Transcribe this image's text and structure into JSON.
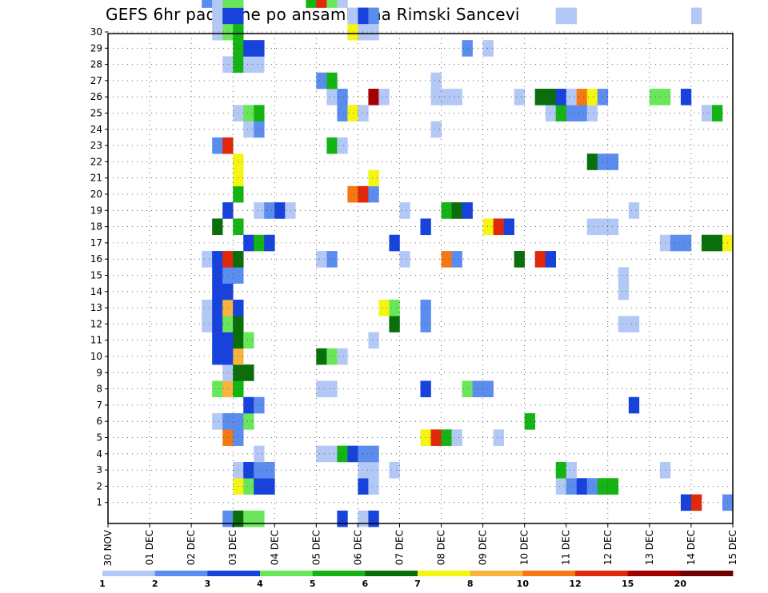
{
  "title": "GEFS 6hr padavine po ansamblima Rimski Sancevi",
  "chart_data": {
    "type": "heatmap",
    "title": "GEFS 6hr padavine po ansamblima Rimski Sancevi",
    "x_ticks": [
      "30 NOV",
      "01 DEC",
      "02 DEC",
      "03 DEC",
      "04 DEC",
      "05 DEC",
      "06 DEC",
      "07 DEC",
      "08 DEC",
      "09 DEC",
      "10 DEC",
      "11 DEC",
      "12 DEC",
      "13 DEC",
      "14 DEC",
      "15 DEC"
    ],
    "x_range_days": [
      0,
      15
    ],
    "y_ticks": [
      "1",
      "2",
      "3",
      "4",
      "5",
      "6",
      "7",
      "8",
      "9",
      "10",
      "11",
      "12",
      "13",
      "14",
      "15",
      "16",
      "17",
      "18",
      "19",
      "20",
      "21",
      "22",
      "23",
      "24",
      "25",
      "26",
      "27",
      "28",
      "29",
      "30"
    ],
    "y_range": [
      0,
      30
    ],
    "grid": true,
    "colorbar": {
      "labels": [
        "1",
        "2",
        "3",
        "4",
        "5",
        "6",
        "7",
        "8",
        "10",
        "12",
        "15",
        "20"
      ],
      "colors": [
        "#b4c8f5",
        "#5b8def",
        "#1842dc",
        "#6ae65a",
        "#14b414",
        "#0a6e0a",
        "#f5f514",
        "#f8b43c",
        "#f57814",
        "#e1280a",
        "#a50000",
        "#6e0000"
      ]
    },
    "note": "cells: [member, day_offset_from_30_NOV, 6h_steps, color_level 0-11]",
    "cells": [
      [
        0,
        2.75,
        1,
        1
      ],
      [
        0,
        3.0,
        1,
        5
      ],
      [
        0,
        3.25,
        2,
        3
      ],
      [
        0,
        5.5,
        1,
        2
      ],
      [
        0,
        6.0,
        1,
        0
      ],
      [
        0,
        6.25,
        1,
        2
      ],
      [
        1,
        13.75,
        1,
        2
      ],
      [
        1,
        14.0,
        1,
        9
      ],
      [
        1,
        14.75,
        1,
        1
      ],
      [
        2,
        3.0,
        1,
        6
      ],
      [
        2,
        3.25,
        1,
        3
      ],
      [
        2,
        3.5,
        2,
        2
      ],
      [
        2,
        6.0,
        1,
        2
      ],
      [
        2,
        6.25,
        1,
        0
      ],
      [
        2,
        10.75,
        1,
        0
      ],
      [
        2,
        11.0,
        1,
        1
      ],
      [
        2,
        11.25,
        1,
        2
      ],
      [
        2,
        11.5,
        1,
        1
      ],
      [
        2,
        11.75,
        1,
        4
      ],
      [
        2,
        12.0,
        1,
        4
      ],
      [
        3,
        3.0,
        1,
        0
      ],
      [
        3,
        3.25,
        1,
        2
      ],
      [
        3,
        3.5,
        2,
        1
      ],
      [
        3,
        6.0,
        2,
        0
      ],
      [
        3,
        6.75,
        1,
        0
      ],
      [
        3,
        10.75,
        1,
        4
      ],
      [
        3,
        11.0,
        1,
        0
      ],
      [
        3,
        13.25,
        1,
        0
      ],
      [
        4,
        3.5,
        1,
        0
      ],
      [
        4,
        5.0,
        2,
        0
      ],
      [
        4,
        5.5,
        1,
        4
      ],
      [
        4,
        5.75,
        1,
        2
      ],
      [
        4,
        6.0,
        2,
        1
      ],
      [
        5,
        2.75,
        1,
        8
      ],
      [
        5,
        3.0,
        1,
        1
      ],
      [
        5,
        7.5,
        1,
        6
      ],
      [
        5,
        7.75,
        1,
        9
      ],
      [
        5,
        8.0,
        1,
        4
      ],
      [
        5,
        8.25,
        1,
        0
      ],
      [
        5,
        9.25,
        1,
        0
      ],
      [
        6,
        2.5,
        1,
        0
      ],
      [
        6,
        2.75,
        2,
        1
      ],
      [
        6,
        3.25,
        1,
        3
      ],
      [
        6,
        10.0,
        1,
        4
      ],
      [
        7,
        3.25,
        1,
        2
      ],
      [
        7,
        3.5,
        1,
        1
      ],
      [
        7,
        12.5,
        1,
        2
      ],
      [
        8,
        2.5,
        1,
        3
      ],
      [
        8,
        2.75,
        1,
        7
      ],
      [
        8,
        3.0,
        1,
        4
      ],
      [
        8,
        5.0,
        2,
        0
      ],
      [
        8,
        7.5,
        1,
        2
      ],
      [
        8,
        8.5,
        1,
        3
      ],
      [
        8,
        8.75,
        2,
        1
      ],
      [
        9,
        2.75,
        1,
        0
      ],
      [
        9,
        3.0,
        1,
        5
      ],
      [
        9,
        3.25,
        1,
        5
      ],
      [
        10,
        2.5,
        1,
        2
      ],
      [
        10,
        2.75,
        1,
        2
      ],
      [
        10,
        3.0,
        1,
        7
      ],
      [
        10,
        5.0,
        1,
        5
      ],
      [
        10,
        5.25,
        1,
        3
      ],
      [
        10,
        5.5,
        1,
        0
      ],
      [
        11,
        2.5,
        1,
        2
      ],
      [
        11,
        2.75,
        1,
        2
      ],
      [
        11,
        3.0,
        1,
        5
      ],
      [
        11,
        3.25,
        1,
        3
      ],
      [
        11,
        6.25,
        1,
        0
      ],
      [
        12,
        2.25,
        1,
        0
      ],
      [
        12,
        2.5,
        1,
        2
      ],
      [
        12,
        2.75,
        1,
        3
      ],
      [
        12,
        3.0,
        1,
        5
      ],
      [
        12,
        6.75,
        1,
        5
      ],
      [
        12,
        7.5,
        1,
        1
      ],
      [
        12,
        12.25,
        2,
        0
      ],
      [
        13,
        2.25,
        1,
        0
      ],
      [
        13,
        2.5,
        1,
        2
      ],
      [
        13,
        2.75,
        1,
        7
      ],
      [
        13,
        3.0,
        1,
        2
      ],
      [
        13,
        6.5,
        1,
        6
      ],
      [
        13,
        6.75,
        1,
        3
      ],
      [
        13,
        7.5,
        1,
        1
      ],
      [
        14,
        2.5,
        2,
        2
      ],
      [
        14,
        12.25,
        1,
        0
      ],
      [
        15,
        2.5,
        1,
        2
      ],
      [
        15,
        2.75,
        2,
        1
      ],
      [
        15,
        12.25,
        1,
        0
      ],
      [
        16,
        2.25,
        1,
        0
      ],
      [
        16,
        2.5,
        1,
        2
      ],
      [
        16,
        2.75,
        1,
        9
      ],
      [
        16,
        3.0,
        1,
        5
      ],
      [
        16,
        5.0,
        1,
        0
      ],
      [
        16,
        5.25,
        1,
        1
      ],
      [
        16,
        7.0,
        1,
        0
      ],
      [
        16,
        8.0,
        1,
        8
      ],
      [
        16,
        8.25,
        1,
        1
      ],
      [
        16,
        9.75,
        1,
        5
      ],
      [
        16,
        10.25,
        1,
        9
      ],
      [
        16,
        10.5,
        1,
        2
      ],
      [
        17,
        3.25,
        1,
        2
      ],
      [
        17,
        3.5,
        1,
        4
      ],
      [
        17,
        3.75,
        1,
        2
      ],
      [
        17,
        6.75,
        1,
        2
      ],
      [
        17,
        13.25,
        1,
        0
      ],
      [
        17,
        13.5,
        2,
        1
      ],
      [
        17,
        14.25,
        2,
        5
      ],
      [
        17,
        14.75,
        1,
        6
      ],
      [
        18,
        2.5,
        1,
        5
      ],
      [
        18,
        3.0,
        1,
        4
      ],
      [
        18,
        7.5,
        1,
        2
      ],
      [
        18,
        9.0,
        1,
        6
      ],
      [
        18,
        9.25,
        1,
        9
      ],
      [
        18,
        9.5,
        1,
        2
      ],
      [
        18,
        11.5,
        2,
        0
      ],
      [
        18,
        12.0,
        1,
        0
      ],
      [
        19,
        2.75,
        1,
        2
      ],
      [
        19,
        3.5,
        1,
        0
      ],
      [
        19,
        3.75,
        1,
        1
      ],
      [
        19,
        4.0,
        1,
        2
      ],
      [
        19,
        4.25,
        1,
        0
      ],
      [
        19,
        7.0,
        1,
        0
      ],
      [
        19,
        8.0,
        1,
        4
      ],
      [
        19,
        8.25,
        1,
        5
      ],
      [
        19,
        8.5,
        1,
        2
      ],
      [
        19,
        12.5,
        1,
        0
      ],
      [
        20,
        3.0,
        1,
        4
      ],
      [
        20,
        5.75,
        1,
        8
      ],
      [
        20,
        6.0,
        1,
        9
      ],
      [
        20,
        6.25,
        1,
        1
      ],
      [
        21,
        3.0,
        1,
        6
      ],
      [
        21,
        6.25,
        1,
        6
      ],
      [
        22,
        3.0,
        1,
        6
      ],
      [
        22,
        11.5,
        1,
        5
      ],
      [
        22,
        11.75,
        2,
        1
      ],
      [
        23,
        2.5,
        1,
        1
      ],
      [
        23,
        2.75,
        1,
        9
      ],
      [
        23,
        5.25,
        1,
        4
      ],
      [
        23,
        5.5,
        1,
        0
      ],
      [
        24,
        3.25,
        1,
        0
      ],
      [
        24,
        3.5,
        1,
        1
      ],
      [
        24,
        7.75,
        1,
        0
      ],
      [
        25,
        3.0,
        1,
        0
      ],
      [
        25,
        3.25,
        1,
        3
      ],
      [
        25,
        3.5,
        1,
        4
      ],
      [
        25,
        5.5,
        1,
        1
      ],
      [
        25,
        5.75,
        1,
        6
      ],
      [
        25,
        6.0,
        1,
        0
      ],
      [
        25,
        10.5,
        1,
        0
      ],
      [
        25,
        10.75,
        1,
        4
      ],
      [
        25,
        11.0,
        2,
        1
      ],
      [
        25,
        11.5,
        1,
        0
      ],
      [
        25,
        14.25,
        1,
        0
      ],
      [
        25,
        14.5,
        1,
        4
      ],
      [
        26,
        5.25,
        1,
        0
      ],
      [
        26,
        5.5,
        1,
        1
      ],
      [
        26,
        6.25,
        1,
        10
      ],
      [
        26,
        6.5,
        1,
        0
      ],
      [
        26,
        7.75,
        3,
        0
      ],
      [
        26,
        9.75,
        1,
        0
      ],
      [
        26,
        10.25,
        2,
        5
      ],
      [
        26,
        10.75,
        1,
        2
      ],
      [
        26,
        11.0,
        1,
        0
      ],
      [
        26,
        11.25,
        1,
        8
      ],
      [
        26,
        11.5,
        1,
        6
      ],
      [
        26,
        11.75,
        1,
        1
      ],
      [
        26,
        13.0,
        2,
        3
      ],
      [
        26,
        13.75,
        1,
        2
      ],
      [
        27,
        5.0,
        1,
        1
      ],
      [
        27,
        5.25,
        1,
        4
      ],
      [
        27,
        7.75,
        1,
        0
      ],
      [
        28,
        2.75,
        1,
        0
      ],
      [
        28,
        3.0,
        1,
        4
      ],
      [
        28,
        3.25,
        2,
        0
      ],
      [
        29,
        3.0,
        1,
        4
      ],
      [
        29,
        3.25,
        2,
        2
      ],
      [
        29,
        8.5,
        1,
        1
      ],
      [
        29,
        9.0,
        1,
        0
      ],
      [
        30,
        2.5,
        1,
        0
      ],
      [
        30,
        2.75,
        1,
        3
      ],
      [
        30,
        3.0,
        1,
        4
      ],
      [
        30,
        5.75,
        1,
        6
      ],
      [
        30,
        6.0,
        2,
        0
      ],
      [
        31,
        2.5,
        1,
        0
      ],
      [
        31,
        2.75,
        1,
        2
      ],
      [
        31,
        3.0,
        1,
        2
      ],
      [
        31,
        5.75,
        1,
        0
      ],
      [
        31,
        6.0,
        1,
        2
      ],
      [
        31,
        6.25,
        1,
        1
      ],
      [
        31,
        10.75,
        2,
        0
      ],
      [
        31,
        14.0,
        1,
        0
      ],
      [
        32,
        2.25,
        1,
        1
      ],
      [
        32,
        2.5,
        1,
        0
      ],
      [
        32,
        2.75,
        2,
        3
      ],
      [
        32,
        4.75,
        1,
        4
      ],
      [
        32,
        5.0,
        1,
        9
      ],
      [
        32,
        5.25,
        1,
        3
      ],
      [
        32,
        5.5,
        1,
        0
      ]
    ]
  }
}
